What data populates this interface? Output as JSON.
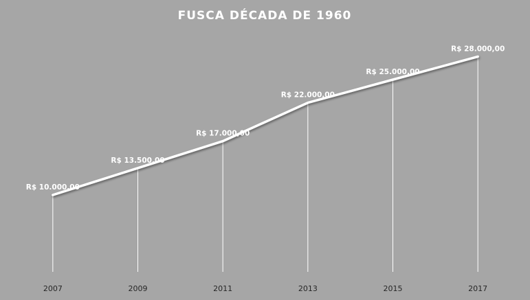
{
  "chart_data": {
    "type": "line",
    "title": "FUSCA  DÉCADA DE 1960",
    "categories": [
      "2007",
      "2009",
      "2011",
      "2013",
      "2015",
      "2017"
    ],
    "values": [
      10000,
      13500,
      17000,
      22000,
      25000,
      28000
    ],
    "value_labels": [
      "R$ 10.000,00",
      "R$ 13.500,00",
      "R$ 17.000,00",
      "R$ 22.000,00",
      "R$ 25.000,00",
      "R$ 28.000,00"
    ],
    "color": "#ffffff",
    "drop_lines": true,
    "ylim": [
      0,
      30000
    ]
  }
}
